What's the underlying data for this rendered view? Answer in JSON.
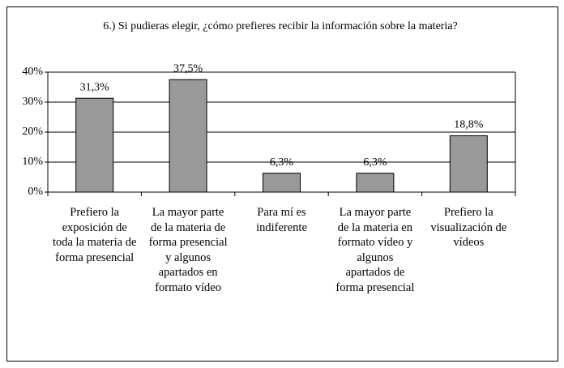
{
  "chart_data": {
    "type": "bar",
    "title": "6.) Si pudieras elegir, ¿cómo prefieres recibir la información sobre la materia?",
    "categories": [
      "Prefiero la exposición de toda la materia de forma presencial",
      "La mayor parte de la materia de forma presencial y algunos apartados en formato vídeo",
      "Para mí es indiferente",
      "La mayor parte de la materia en formato vídeo y algunos apartados de forma presencial",
      "Prefiero la visualización de vídeos"
    ],
    "values": [
      31.3,
      37.5,
      6.3,
      6.3,
      18.8
    ],
    "value_labels": [
      "31,3%",
      "37,5%",
      "6,3%",
      "6,3%",
      "18,8%"
    ],
    "color": "#999999",
    "ylim": [
      0,
      40
    ],
    "yticks": [
      {
        "value": 0,
        "label": "0%"
      },
      {
        "value": 10,
        "label": "10%"
      },
      {
        "value": 20,
        "label": "20%"
      },
      {
        "value": 30,
        "label": "30%"
      },
      {
        "value": 40,
        "label": "40%"
      }
    ],
    "grid": true
  }
}
